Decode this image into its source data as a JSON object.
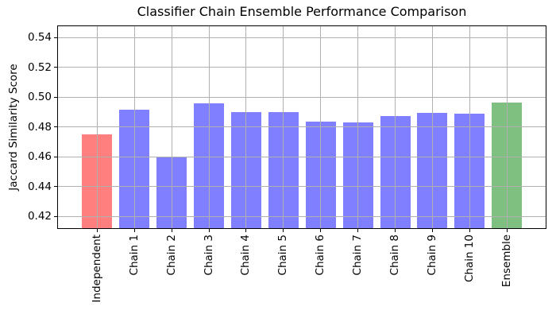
{
  "chart_data": {
    "type": "bar",
    "title": "Classifier Chain Ensemble Performance Comparison",
    "xlabel": "",
    "ylabel": "Jaccard Similarity Score",
    "categories": [
      "Independent",
      "Chain 1",
      "Chain 2",
      "Chain 3",
      "Chain 4",
      "Chain 5",
      "Chain 6",
      "Chain 7",
      "Chain 8",
      "Chain 9",
      "Chain 10",
      "Ensemble"
    ],
    "values": [
      0.475,
      0.4915,
      0.4595,
      0.4955,
      0.49,
      0.49,
      0.4835,
      0.483,
      0.487,
      0.4895,
      0.489,
      0.4965
    ],
    "bar_colors": [
      "#ff7f7f",
      "#7f7fff",
      "#7f7fff",
      "#7f7fff",
      "#7f7fff",
      "#7f7fff",
      "#7f7fff",
      "#7f7fff",
      "#7f7fff",
      "#7f7fff",
      "#7f7fff",
      "#7fbf7f"
    ],
    "yticks": [
      0.42,
      0.44,
      0.46,
      0.48,
      0.5,
      0.52,
      0.54
    ],
    "ylim": [
      0.412,
      0.5475
    ],
    "grid": true,
    "grid_color": "#b0b0b0",
    "spine_color": "#000000",
    "legend": null
  }
}
